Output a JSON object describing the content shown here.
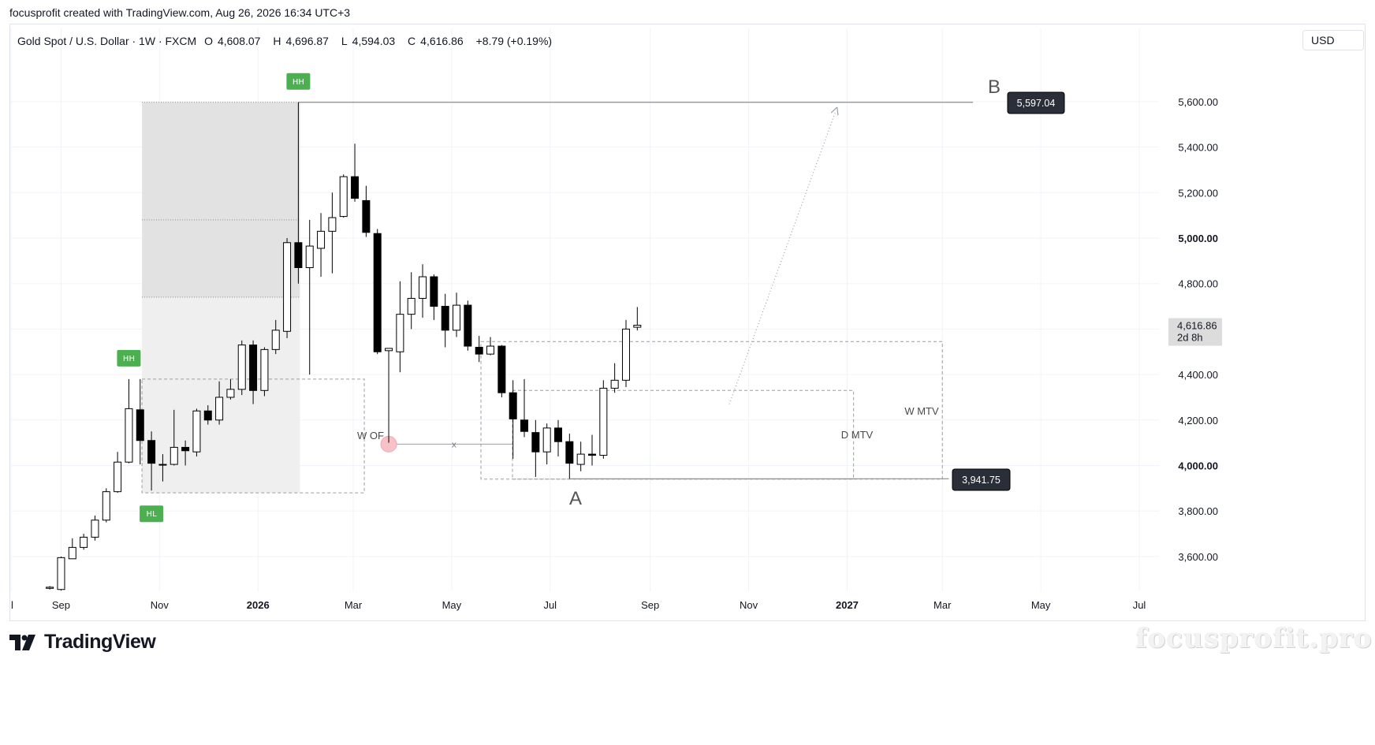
{
  "header": {
    "credit": "focusprofit created with TradingView.com, Aug 26, 2026 16:34 UTC+3"
  },
  "legend": {
    "symbol": "Gold Spot / U.S. Dollar · 1W · FXCM",
    "o_label": "O",
    "o": "4,608.07",
    "h_label": "H",
    "h": "4,696.87",
    "l_label": "L",
    "l": "4,594.03",
    "c_label": "C",
    "c": "4,616.86",
    "change": "+8.79 (+0.19%)"
  },
  "currency": "USD",
  "branding": {
    "logo_text": "TradingView",
    "watermark": "focusprofit.pro"
  },
  "colors": {
    "up_body": "#ffffff",
    "down_body": "#000000",
    "wick": "#000000",
    "badge_green": "#4caf50",
    "label_dark": "#2a2e39",
    "grid": "#f0f3fa"
  },
  "chart_data": {
    "type": "candlestick",
    "symbol": "Gold Spot / U.S. Dollar",
    "interval": "1W",
    "y_axis": {
      "ticks": [
        3600,
        3800,
        4000,
        4200,
        4400,
        4600,
        4800,
        5000,
        5200,
        5400,
        5600
      ],
      "tick_labels": [
        "3,600.00",
        "3,800.00",
        "4,000.00",
        "4,200.00",
        "4,400.00",
        "4,600.00",
        "4,800.00",
        "5,000.00",
        "5,200.00",
        "5,400.00",
        "5,600.00"
      ],
      "range": [
        3460,
        5750
      ],
      "bold_ticks": [
        4000,
        5000
      ]
    },
    "x_axis": {
      "labels": [
        {
          "text": "l",
          "date": "2025-08-01",
          "bold": false
        },
        {
          "text": "Sep",
          "date": "2025-09-01",
          "bold": false
        },
        {
          "text": "Nov",
          "date": "2025-11-01",
          "bold": false
        },
        {
          "text": "2026",
          "date": "2026-01-01",
          "bold": true
        },
        {
          "text": "Mar",
          "date": "2026-03-01",
          "bold": false
        },
        {
          "text": "May",
          "date": "2026-05-01",
          "bold": false
        },
        {
          "text": "Jul",
          "date": "2026-07-01",
          "bold": false
        },
        {
          "text": "Sep",
          "date": "2026-09-01",
          "bold": false
        },
        {
          "text": "Nov",
          "date": "2026-11-01",
          "bold": false
        },
        {
          "text": "2027",
          "date": "2027-01-01",
          "bold": true
        },
        {
          "text": "Mar",
          "date": "2027-03-01",
          "bold": false
        },
        {
          "text": "May",
          "date": "2027-05-01",
          "bold": false
        },
        {
          "text": "Jul",
          "date": "2027-07-01",
          "bold": false
        }
      ]
    },
    "candles": [
      {
        "date": "2025-08-25",
        "o": 3460,
        "h": 3470,
        "l": 3455,
        "c": 3465
      },
      {
        "date": "2025-09-01",
        "o": 3455,
        "h": 3600,
        "l": 3450,
        "c": 3595
      },
      {
        "date": "2025-09-08",
        "o": 3590,
        "h": 3680,
        "l": 3590,
        "c": 3640
      },
      {
        "date": "2025-09-15",
        "o": 3640,
        "h": 3700,
        "l": 3630,
        "c": 3685
      },
      {
        "date": "2025-09-22",
        "o": 3685,
        "h": 3780,
        "l": 3670,
        "c": 3760
      },
      {
        "date": "2025-09-29",
        "o": 3760,
        "h": 3900,
        "l": 3750,
        "c": 3885
      },
      {
        "date": "2025-10-06",
        "o": 3885,
        "h": 4060,
        "l": 3880,
        "c": 4015
      },
      {
        "date": "2025-10-13",
        "o": 4015,
        "h": 4380,
        "l": 4010,
        "c": 4250
      },
      {
        "date": "2025-10-20",
        "o": 4245,
        "h": 4380,
        "l": 4005,
        "c": 4110
      },
      {
        "date": "2025-10-27",
        "o": 4110,
        "h": 4150,
        "l": 3890,
        "c": 4010
      },
      {
        "date": "2025-11-03",
        "o": 4005,
        "h": 4050,
        "l": 3930,
        "c": 4005
      },
      {
        "date": "2025-11-10",
        "o": 4005,
        "h": 4245,
        "l": 4000,
        "c": 4080
      },
      {
        "date": "2025-11-17",
        "o": 4080,
        "h": 4110,
        "l": 4000,
        "c": 4065
      },
      {
        "date": "2025-11-24",
        "o": 4060,
        "h": 4250,
        "l": 4040,
        "c": 4240
      },
      {
        "date": "2025-12-01",
        "o": 4240,
        "h": 4265,
        "l": 4180,
        "c": 4200
      },
      {
        "date": "2025-12-08",
        "o": 4200,
        "h": 4370,
        "l": 4180,
        "c": 4300
      },
      {
        "date": "2025-12-15",
        "o": 4300,
        "h": 4380,
        "l": 4290,
        "c": 4335
      },
      {
        "date": "2025-12-22",
        "o": 4335,
        "h": 4550,
        "l": 4310,
        "c": 4530
      },
      {
        "date": "2025-12-29",
        "o": 4530,
        "h": 4550,
        "l": 4270,
        "c": 4330
      },
      {
        "date": "2026-01-05",
        "o": 4330,
        "h": 4520,
        "l": 4305,
        "c": 4510
      },
      {
        "date": "2026-01-12",
        "o": 4510,
        "h": 4640,
        "l": 4490,
        "c": 4595
      },
      {
        "date": "2026-01-19",
        "o": 4590,
        "h": 5000,
        "l": 4560,
        "c": 4980
      },
      {
        "date": "2026-01-26",
        "o": 4980,
        "h": 5597,
        "l": 4800,
        "c": 4870
      },
      {
        "date": "2026-02-02",
        "o": 4870,
        "h": 5080,
        "l": 4400,
        "c": 4965
      },
      {
        "date": "2026-02-09",
        "o": 4955,
        "h": 5110,
        "l": 4830,
        "c": 5030
      },
      {
        "date": "2026-02-16",
        "o": 5030,
        "h": 5200,
        "l": 4845,
        "c": 5090
      },
      {
        "date": "2026-02-23",
        "o": 5095,
        "h": 5280,
        "l": 5090,
        "c": 5270
      },
      {
        "date": "2026-03-02",
        "o": 5270,
        "h": 5415,
        "l": 5160,
        "c": 5175
      },
      {
        "date": "2026-03-09",
        "o": 5165,
        "h": 5230,
        "l": 5005,
        "c": 5025
      },
      {
        "date": "2026-03-16",
        "o": 5020,
        "h": 5040,
        "l": 4490,
        "c": 4500
      },
      {
        "date": "2026-03-23",
        "o": 4505,
        "h": 4510,
        "l": 4100,
        "c": 4515
      },
      {
        "date": "2026-03-30",
        "o": 4500,
        "h": 4810,
        "l": 4410,
        "c": 4665
      },
      {
        "date": "2026-04-06",
        "o": 4665,
        "h": 4850,
        "l": 4600,
        "c": 4735
      },
      {
        "date": "2026-04-13",
        "o": 4735,
        "h": 4885,
        "l": 4650,
        "c": 4830
      },
      {
        "date": "2026-04-20",
        "o": 4830,
        "h": 4840,
        "l": 4640,
        "c": 4700
      },
      {
        "date": "2026-04-27",
        "o": 4700,
        "h": 4755,
        "l": 4520,
        "c": 4595
      },
      {
        "date": "2026-05-04",
        "o": 4595,
        "h": 4760,
        "l": 4565,
        "c": 4705
      },
      {
        "date": "2026-05-11",
        "o": 4705,
        "h": 4725,
        "l": 4505,
        "c": 4525
      },
      {
        "date": "2026-05-18",
        "o": 4520,
        "h": 4570,
        "l": 4455,
        "c": 4490
      },
      {
        "date": "2026-05-25",
        "o": 4490,
        "h": 4565,
        "l": 4485,
        "c": 4525
      },
      {
        "date": "2026-06-01",
        "o": 4525,
        "h": 4530,
        "l": 4300,
        "c": 4320
      },
      {
        "date": "2026-06-08",
        "o": 4320,
        "h": 4375,
        "l": 4030,
        "c": 4205
      },
      {
        "date": "2026-06-15",
        "o": 4200,
        "h": 4380,
        "l": 4125,
        "c": 4150
      },
      {
        "date": "2026-06-22",
        "o": 4145,
        "h": 4200,
        "l": 3950,
        "c": 4060
      },
      {
        "date": "2026-06-29",
        "o": 4060,
        "h": 4185,
        "l": 4005,
        "c": 4165
      },
      {
        "date": "2026-07-06",
        "o": 4165,
        "h": 4200,
        "l": 4040,
        "c": 4105
      },
      {
        "date": "2026-07-13",
        "o": 4105,
        "h": 4140,
        "l": 3941.75,
        "c": 4010
      },
      {
        "date": "2026-07-20",
        "o": 4005,
        "h": 4105,
        "l": 3975,
        "c": 4050
      },
      {
        "date": "2026-07-27",
        "o": 4050,
        "h": 4135,
        "l": 4000,
        "c": 4045
      },
      {
        "date": "2026-08-03",
        "o": 4045,
        "h": 4375,
        "l": 4030,
        "c": 4340
      },
      {
        "date": "2026-08-10",
        "o": 4340,
        "h": 4450,
        "l": 4320,
        "c": 4375
      },
      {
        "date": "2026-08-17",
        "o": 4375,
        "h": 4640,
        "l": 4345,
        "c": 4600
      },
      {
        "date": "2026-08-24",
        "o": 4608.07,
        "h": 4696.87,
        "l": 4594.03,
        "c": 4616.86
      }
    ],
    "annotations": {
      "badges": [
        {
          "text": "HH",
          "date": "2026-01-26",
          "anchor": "above"
        },
        {
          "text": "HH",
          "date": "2025-10-13",
          "anchor": "above"
        },
        {
          "text": "HL",
          "date": "2025-10-27",
          "anchor": "below"
        }
      ],
      "zone_labels": [
        "W OF",
        "D MTV",
        "W MTV"
      ],
      "points": [
        "A",
        "B"
      ],
      "cross_mark": "x",
      "price_tags": [
        {
          "text": "5,597.04",
          "price": 5597.04
        },
        {
          "text": "3,941.75",
          "price": 3941.75
        }
      ],
      "current_price": {
        "text": "4,616.86",
        "countdown": "2d 8h",
        "price": 4616.86
      },
      "zones": [
        {
          "name": "premium-zone",
          "from_date": "2025-10-27",
          "to_date": "2026-01-26",
          "from_price": 3880,
          "to_price": 5597.04
        },
        {
          "name": "w-of-box",
          "from_date": "2025-10-27",
          "to_date": "2026-03-02",
          "from_price": 3880,
          "to_price": 4380
        },
        {
          "name": "w-mtv-box",
          "from_date": "2026-05-25",
          "to_date": "2027-03-01",
          "from_price": 3940,
          "to_price": 4545
        },
        {
          "name": "d-mtv-box",
          "from_date": "2026-06-15",
          "to_date": "2027-01-05",
          "from_price": 3940,
          "to_price": 4330
        }
      ],
      "levels": [
        {
          "name": "level-b",
          "price": 5597.04,
          "from_date": "2026-01-26",
          "to_date": "2027-03-20"
        },
        {
          "name": "level-a",
          "price": 3941.75,
          "from_date": "2026-07-13",
          "to_date": "2027-03-05"
        }
      ],
      "projection": {
        "from_date": "2026-10-20",
        "from_price": 4270,
        "to_date": "2026-12-25",
        "to_price": 5560
      }
    }
  }
}
